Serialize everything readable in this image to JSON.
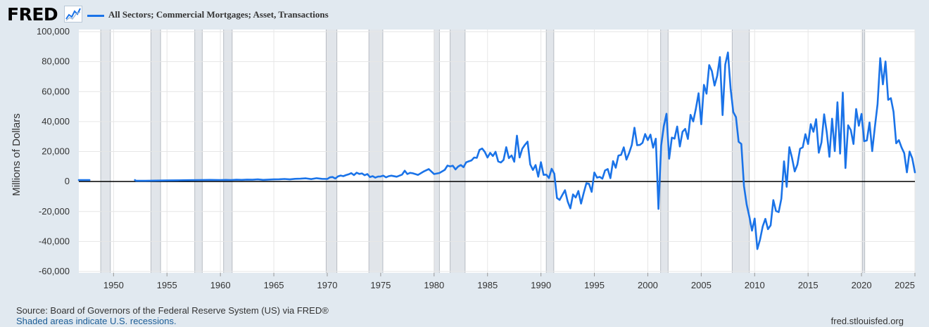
{
  "header": {
    "logo_text": "FRED",
    "legend_label": "All Sectors; Commercial Mortgages; Asset, Transactions",
    "series_color": "#1a73e8"
  },
  "footer": {
    "source": "Source: Board of Governors of the Federal Reserve System (US) via FRED®",
    "recession_note": "Shaded areas indicate U.S. recessions.",
    "site": "fred.stlouisfed.org"
  },
  "chart_data": {
    "type": "line",
    "title": "All Sectors; Commercial Mortgages; Asset, Transactions",
    "ylabel": "Millions of Dollars",
    "xlabel": "",
    "xlim": [
      1946.75,
      2025.0
    ],
    "ylim": [
      -60000,
      100000
    ],
    "yticks": [
      100000,
      80000,
      60000,
      40000,
      20000,
      0,
      -20000,
      -40000,
      -60000
    ],
    "ytick_labels": [
      "100,000",
      "80,000",
      "60,000",
      "40,000",
      "20,000",
      "0",
      "-20,000",
      "-40,000",
      "-60,000"
    ],
    "xticks": [
      1950,
      1955,
      1960,
      1965,
      1970,
      1975,
      1980,
      1985,
      1990,
      1995,
      2000,
      2005,
      2010,
      2015,
      2020,
      2025
    ],
    "grid": true,
    "legend_position": "top-left",
    "recessions": [
      [
        1948.8,
        1949.7
      ],
      [
        1953.5,
        1954.4
      ],
      [
        1957.6,
        1958.3
      ],
      [
        1960.3,
        1961.1
      ],
      [
        1969.9,
        1970.9
      ],
      [
        1973.9,
        1975.2
      ],
      [
        1980.0,
        1980.5
      ],
      [
        1981.5,
        1982.9
      ],
      [
        1990.5,
        1991.2
      ],
      [
        2001.2,
        2001.9
      ],
      [
        2007.9,
        2009.5
      ],
      [
        2020.1,
        2020.3
      ]
    ],
    "series": [
      {
        "name": "All Sectors; Commercial Mortgages; Asset, Transactions",
        "color": "#1a73e8",
        "segments": [
          {
            "x": [
              1946.75,
              1947.0,
              1947.25,
              1947.5,
              1947.75
            ],
            "y": [
              1000,
              1000,
              1000,
              1000,
              1000
            ]
          },
          {
            "x": [
              1952.0,
              1952.1,
              1953,
              1954,
              1955,
              1956,
              1957,
              1958,
              1959,
              1960,
              1960.5,
              1961,
              1961.5,
              1962,
              1962.5,
              1963,
              1963.5,
              1964,
              1964.5,
              1965,
              1965.5,
              1966,
              1966.5,
              1967,
              1967.5,
              1968,
              1968.5,
              1969,
              1969.5,
              1970,
              1970.25,
              1970.5,
              1970.75,
              1971,
              1971.25,
              1971.5,
              1971.75,
              1972,
              1972.25,
              1972.5,
              1972.75,
              1973,
              1973.25,
              1973.5,
              1973.75,
              1974,
              1974.25,
              1974.5,
              1974.75,
              1975,
              1975.25,
              1975.5,
              1975.75,
              1976,
              1976.5,
              1977,
              1977.25,
              1977.5,
              1977.75,
              1978,
              1978.5,
              1979,
              1979.5,
              1980,
              1980.5,
              1981,
              1981.25,
              1981.5,
              1981.75,
              1982,
              1982.25,
              1982.5,
              1982.75,
              1983,
              1983.25,
              1983.5,
              1983.75,
              1984,
              1984.25,
              1984.5,
              1984.75,
              1985,
              1985.25,
              1985.5,
              1985.75,
              1986,
              1986.25,
              1986.5,
              1986.75,
              1987,
              1987.25,
              1987.5,
              1987.75,
              1988,
              1988.25,
              1988.5,
              1988.75,
              1989,
              1989.25,
              1989.5,
              1989.75,
              1990,
              1990.25,
              1990.5,
              1990.75,
              1991,
              1991.25,
              1991.5,
              1991.75,
              1992,
              1992.25,
              1992.5,
              1992.75,
              1993,
              1993.25,
              1993.5,
              1993.75,
              1994,
              1994.25,
              1994.5,
              1994.75,
              1995,
              1995.25,
              1995.5,
              1995.75,
              1996,
              1996.25,
              1996.5,
              1996.75,
              1997,
              1997.25,
              1997.5,
              1997.75,
              1998,
              1998.25,
              1998.5,
              1998.75,
              1999,
              1999.25,
              1999.5,
              1999.75,
              2000,
              2000.25,
              2000.5,
              2000.75,
              2001,
              2001.25,
              2001.5,
              2001.75,
              2002,
              2002.25,
              2002.5,
              2002.75,
              2003,
              2003.25,
              2003.5,
              2003.75,
              2004,
              2004.25,
              2004.5,
              2004.75,
              2005,
              2005.25,
              2005.5,
              2005.75,
              2006,
              2006.25,
              2006.5,
              2006.75,
              2007,
              2007.25,
              2007.5,
              2007.75,
              2008,
              2008.25,
              2008.5,
              2008.75,
              2009,
              2009.25,
              2009.5,
              2009.75,
              2010,
              2010.25,
              2010.5,
              2010.75,
              2011,
              2011.25,
              2011.5,
              2011.75,
              2012,
              2012.25,
              2012.5,
              2012.75,
              2013,
              2013.25,
              2013.5,
              2013.75,
              2014,
              2014.25,
              2014.5,
              2014.75,
              2015,
              2015.25,
              2015.5,
              2015.75,
              2016,
              2016.25,
              2016.5,
              2016.75,
              2017,
              2017.25,
              2017.5,
              2017.75,
              2018,
              2018.25,
              2018.5,
              2018.75,
              2019,
              2019.25,
              2019.5,
              2019.75,
              2020,
              2020.25,
              2020.5,
              2020.75,
              2021,
              2021.25,
              2021.5,
              2021.75,
              2022,
              2022.25,
              2022.5,
              2022.75,
              2023,
              2023.25,
              2023.5,
              2023.75,
              2024,
              2024.25,
              2024.5,
              2024.75,
              2025.0
            ],
            "y": [
              1000,
              500,
              500,
              600,
              700,
              800,
              900,
              1000,
              1100,
              1000,
              1100,
              1000,
              1200,
              1100,
              1300,
              1200,
              1400,
              1100,
              1300,
              1400,
              1500,
              1700,
              1400,
              1800,
              1900,
              2100,
              1600,
              2200,
              1800,
              1700,
              2800,
              3000,
              2000,
              3400,
              4000,
              3600,
              4300,
              4800,
              5600,
              4300,
              5900,
              5100,
              5400,
              4200,
              5000,
              3000,
              3600,
              2600,
              3300,
              3400,
              3900,
              2800,
              3600,
              3900,
              3200,
              4600,
              7200,
              5000,
              5800,
              5500,
              4400,
              6600,
              8300,
              5000,
              5700,
              7800,
              10600,
              10100,
              10500,
              8100,
              10000,
              11000,
              9600,
              12800,
              13500,
              14100,
              16000,
              15800,
              21100,
              22000,
              19700,
              16000,
              19100,
              17000,
              19800,
              13400,
              12700,
              14400,
              22900,
              15600,
              17400,
              13200,
              30600,
              16000,
              21900,
              24500,
              26600,
              11400,
              7700,
              11000,
              3200,
              12900,
              4400,
              4600,
              2300,
              8500,
              5200,
              -11000,
              -12300,
              -9000,
              -5800,
              -13300,
              -17900,
              -8600,
              -10700,
              -6300,
              -14700,
              -7600,
              -1100,
              -1500,
              -6900,
              6000,
              2600,
              3100,
              1900,
              7400,
              8300,
              2200,
              13600,
              9200,
              17300,
              17800,
              22800,
              14600,
              19000,
              24400,
              35900,
              24200,
              24400,
              25800,
              31700,
              27600,
              31300,
              22600,
              28600,
              -18300,
              23900,
              37000,
              45200,
              15200,
              29300,
              28600,
              36700,
              23400,
              33200,
              35100,
              28400,
              44500,
              40100,
              48700,
              58900,
              38200,
              64500,
              58600,
              77700,
              73700,
              64000,
              70600,
              83000,
              44300,
              78000,
              86100,
              62000,
              46300,
              43000,
              26500,
              25100,
              -3000,
              -15300,
              -23300,
              -32800,
              -24700,
              -45100,
              -38800,
              -30000,
              -24900,
              -31800,
              -29200,
              -12400,
              -19700,
              -20400,
              -11500,
              13500,
              -3500,
              22900,
              15700,
              6700,
              11300,
              21900,
              22800,
              31600,
              25000,
              38300,
              33200,
              41600,
              19200,
              26100,
              44800,
              32900,
              16500,
              41900,
              20300,
              52900,
              18600,
              59300,
              9000,
              37500,
              34300,
              25000,
              48400,
              37200,
              45100,
              26900,
              27400,
              39400,
              20300,
              36400,
              51600,
              82300,
              64800,
              80100,
              54500,
              55600,
              46500,
              25500,
              27600,
              22700,
              18900,
              6100,
              20000,
              15500,
              6100
            ]
          }
        ]
      }
    ]
  }
}
